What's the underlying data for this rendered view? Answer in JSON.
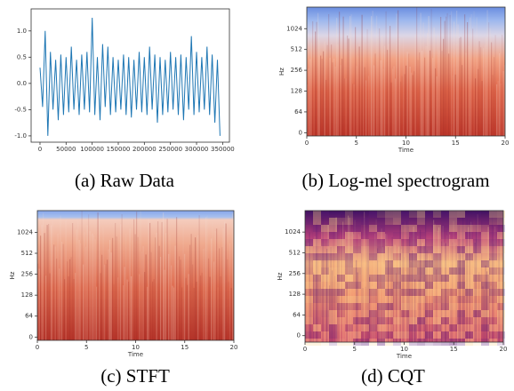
{
  "chart_data": [
    {
      "type": "line",
      "caption": "(a) Raw Data",
      "color": "#1f77b4",
      "x": [
        0,
        5000,
        10000,
        15000,
        20000,
        25000,
        30000,
        35000,
        40000,
        45000,
        50000,
        55000,
        60000,
        65000,
        70000,
        75000,
        80000,
        85000,
        90000,
        95000,
        100000,
        105000,
        110000,
        115000,
        120000,
        125000,
        130000,
        135000,
        140000,
        145000,
        150000,
        155000,
        160000,
        165000,
        170000,
        175000,
        180000,
        185000,
        190000,
        195000,
        200000,
        205000,
        210000,
        215000,
        220000,
        225000,
        230000,
        235000,
        240000,
        245000,
        250000,
        255000,
        260000,
        265000,
        270000,
        275000,
        280000,
        285000,
        290000,
        295000,
        300000,
        305000,
        310000,
        315000,
        320000,
        325000,
        330000,
        335000,
        340000,
        345000
      ],
      "values": [
        0.3,
        -0.45,
        1.0,
        -1.0,
        0.6,
        -0.5,
        0.45,
        -0.7,
        0.55,
        -0.6,
        0.5,
        -0.55,
        0.7,
        -0.5,
        0.45,
        -0.6,
        0.55,
        -0.5,
        0.6,
        -0.55,
        1.25,
        -0.6,
        0.5,
        -0.7,
        0.75,
        -0.45,
        0.7,
        -0.6,
        0.5,
        -0.55,
        0.45,
        -0.5,
        0.55,
        -0.6,
        0.5,
        -0.65,
        0.45,
        -0.5,
        0.6,
        -0.55,
        0.5,
        -0.6,
        0.7,
        -0.5,
        0.55,
        -0.75,
        0.5,
        -0.6,
        0.45,
        -0.55,
        0.6,
        -0.5,
        0.5,
        -0.6,
        0.55,
        -0.7,
        0.5,
        -0.5,
        0.9,
        -0.6,
        0.6,
        -0.55,
        0.5,
        -0.5,
        0.7,
        -0.6,
        0.55,
        -0.75,
        0.45,
        -1.0
      ],
      "xlim": [
        -17000,
        363000
      ],
      "ylim": [
        -1.12,
        1.42
      ],
      "xticks": [
        0,
        50000,
        100000,
        150000,
        200000,
        250000,
        300000,
        350000
      ],
      "yticks": [
        {
          "value": -1.0,
          "label": "-1.0"
        },
        {
          "value": -0.5,
          "label": "-0.5"
        },
        {
          "value": 0.0,
          "label": "0.0"
        },
        {
          "value": 0.5,
          "label": "0.5"
        },
        {
          "value": 1.0,
          "label": "1.0"
        }
      ]
    },
    {
      "type": "heatmap",
      "caption": "(b) Log-mel spectrogram",
      "colormap": "coolwarm",
      "xlabel": "Time",
      "ylabel": "Hz",
      "xlim": [
        0,
        20
      ],
      "xticks": [
        0,
        5,
        10,
        15,
        20
      ],
      "yscale": "symlog",
      "linthresh": 64,
      "ylim": [
        -10,
        2100
      ],
      "yticks": [
        0,
        64,
        128,
        256,
        512,
        1024
      ]
    },
    {
      "type": "heatmap",
      "caption": "(c) STFT",
      "colormap": "stft",
      "xlabel": "Time",
      "ylabel": "Hz",
      "xlim": [
        0,
        20
      ],
      "xticks": [
        0,
        5,
        10,
        15,
        20
      ],
      "yscale": "symlog",
      "linthresh": 64,
      "ylim": [
        -10,
        2100
      ],
      "yticks": [
        0,
        64,
        128,
        256,
        512,
        1024
      ]
    },
    {
      "type": "heatmap",
      "caption": "(d) CQT",
      "colormap": "magma",
      "xlabel": "Time",
      "ylabel": "Hz",
      "xlim": [
        0,
        20
      ],
      "xticks": [
        0,
        5,
        10,
        15,
        20
      ],
      "yscale": "symlog",
      "linthresh": 64,
      "ylim": [
        -20,
        2100
      ],
      "yticks": [
        0,
        64,
        128,
        256,
        512,
        1024
      ]
    }
  ]
}
